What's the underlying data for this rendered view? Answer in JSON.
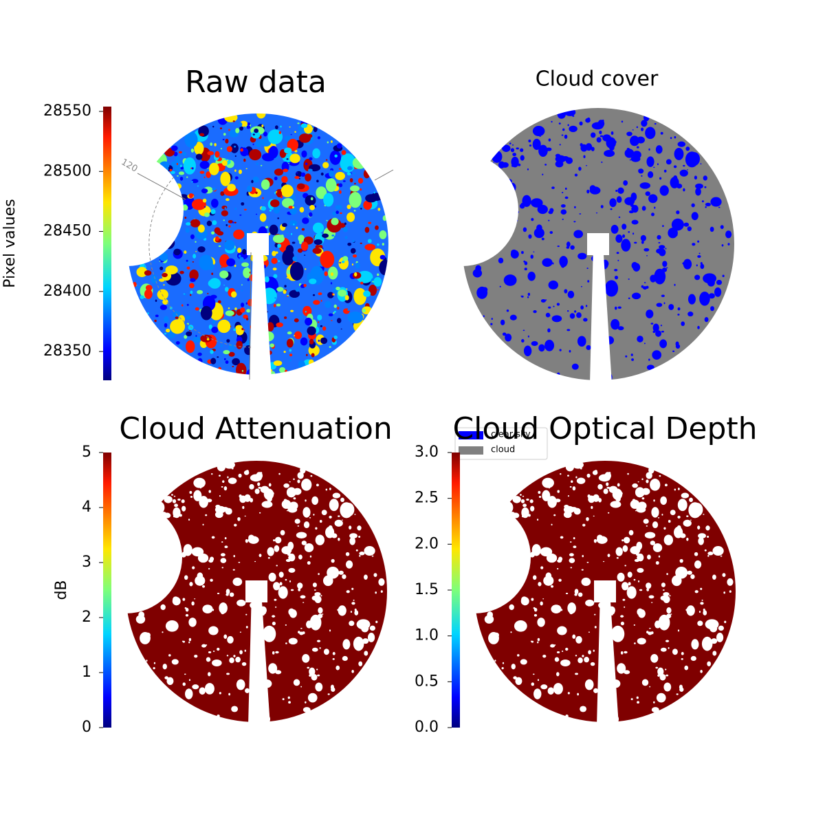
{
  "chart_data": [
    {
      "type": "image",
      "title": "Raw data",
      "colormap": "jet",
      "ylabel": "Pixel values",
      "ylim": [
        28326,
        28554
      ],
      "yticks": [
        28350,
        28400,
        28450,
        28500,
        28550
      ],
      "annotations": [
        "120"
      ]
    },
    {
      "type": "image",
      "title": "Cloud cover",
      "legend": "lower left",
      "series": [
        {
          "name": "clear sky",
          "color": "#0000ff"
        },
        {
          "name": "cloud",
          "color": "#808080"
        }
      ]
    },
    {
      "type": "image",
      "title": "Cloud Attenuation",
      "colormap": "jet",
      "ylabel": "dB",
      "color": "#7f0000",
      "ylim": [
        0,
        5
      ],
      "yticks": [
        0,
        1,
        2,
        3,
        4,
        5
      ]
    },
    {
      "type": "image",
      "title": "Cloud Optical Depth",
      "colormap": "jet",
      "color": "#7f0000",
      "ylim": [
        0,
        3
      ],
      "yticks": [
        {
          "value": 0,
          "label": "0.0"
        },
        {
          "value": 0.5,
          "label": "0.5"
        },
        {
          "value": 1,
          "label": "1.0"
        },
        {
          "value": 1.5,
          "label": "1.5"
        },
        {
          "value": 2,
          "label": "2.0"
        },
        {
          "value": 2.5,
          "label": "2.5"
        },
        {
          "value": 3,
          "label": "3.0"
        }
      ]
    }
  ]
}
